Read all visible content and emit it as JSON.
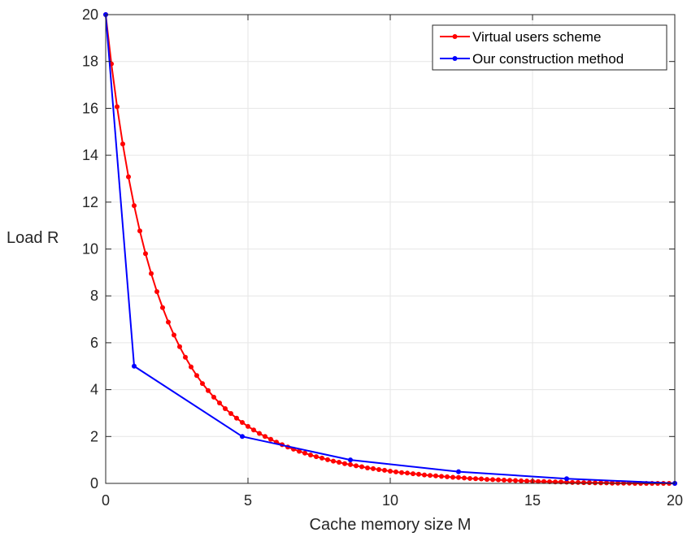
{
  "chart_data": {
    "type": "line",
    "xlabel": "Cache memory size M",
    "ylabel": "Load R",
    "xlim": [
      0,
      20
    ],
    "ylim": [
      0,
      20
    ],
    "xticks": [
      "0",
      "5",
      "10",
      "15",
      "20"
    ],
    "yticks": [
      "0",
      "2",
      "4",
      "6",
      "8",
      "10",
      "12",
      "14",
      "16",
      "18",
      "20"
    ],
    "grid": true,
    "legend_position": "top-right",
    "series": [
      {
        "name": "Virtual users scheme",
        "color": "#ff0000",
        "x": [
          0,
          0.2,
          0.4,
          0.6,
          0.8,
          1.0,
          1.2,
          1.4,
          1.6,
          1.8,
          2.0,
          2.2,
          2.4,
          2.6,
          2.8,
          3.0,
          3.2,
          3.4,
          3.6,
          3.8,
          4.0,
          4.2,
          4.4,
          4.6,
          4.8,
          5.0,
          5.2,
          5.4,
          5.6,
          5.8,
          6.0,
          6.2,
          6.4,
          6.6,
          6.8,
          7.0,
          7.2,
          7.4,
          7.6,
          7.8,
          8.0,
          8.2,
          8.4,
          8.6,
          8.8,
          9.0,
          9.2,
          9.4,
          9.6,
          9.8,
          10.0,
          10.2,
          10.4,
          10.6,
          10.8,
          11.0,
          11.2,
          11.4,
          11.6,
          11.8,
          12.0,
          12.2,
          12.4,
          12.6,
          12.8,
          13.0,
          13.2,
          13.4,
          13.6,
          13.8,
          14.0,
          14.2,
          14.4,
          14.6,
          14.8,
          15.0,
          15.2,
          15.4,
          15.6,
          15.8,
          16.0,
          16.2,
          16.4,
          16.6,
          16.8,
          17.0,
          17.2,
          17.4,
          17.6,
          17.8,
          18.0,
          18.2,
          18.4,
          18.6,
          18.8,
          19.0,
          19.2,
          19.4,
          19.6,
          19.8,
          20.0
        ],
        "y": [
          20.0,
          17.9,
          16.07,
          14.48,
          13.08,
          11.85,
          10.77,
          9.8,
          8.95,
          8.18,
          7.5,
          6.88,
          6.33,
          5.83,
          5.38,
          4.97,
          4.6,
          4.26,
          3.96,
          3.68,
          3.43,
          3.19,
          2.98,
          2.78,
          2.6,
          2.43,
          2.28,
          2.13,
          2.0,
          1.88,
          1.76,
          1.65,
          1.55,
          1.46,
          1.37,
          1.29,
          1.21,
          1.14,
          1.08,
          1.01,
          0.95,
          0.9,
          0.84,
          0.8,
          0.75,
          0.71,
          0.66,
          0.63,
          0.59,
          0.56,
          0.52,
          0.49,
          0.46,
          0.44,
          0.41,
          0.39,
          0.36,
          0.34,
          0.32,
          0.3,
          0.28,
          0.26,
          0.25,
          0.23,
          0.21,
          0.2,
          0.19,
          0.17,
          0.16,
          0.15,
          0.14,
          0.13,
          0.12,
          0.11,
          0.1,
          0.09,
          0.08,
          0.08,
          0.07,
          0.06,
          0.06,
          0.05,
          0.04,
          0.04,
          0.03,
          0.03,
          0.02,
          0.02,
          0.02,
          0.01,
          0.01,
          0.01,
          0.01,
          0.0,
          0.0,
          0.0,
          0.0,
          0.0,
          0.0,
          0.0,
          0.0
        ]
      },
      {
        "name": "Our construction method",
        "color": "#0000ff",
        "x": [
          0,
          1.0,
          4.8,
          8.6,
          12.4,
          16.2,
          20.0
        ],
        "y": [
          20,
          5,
          2,
          1,
          0.5,
          0.2,
          0
        ]
      }
    ]
  }
}
